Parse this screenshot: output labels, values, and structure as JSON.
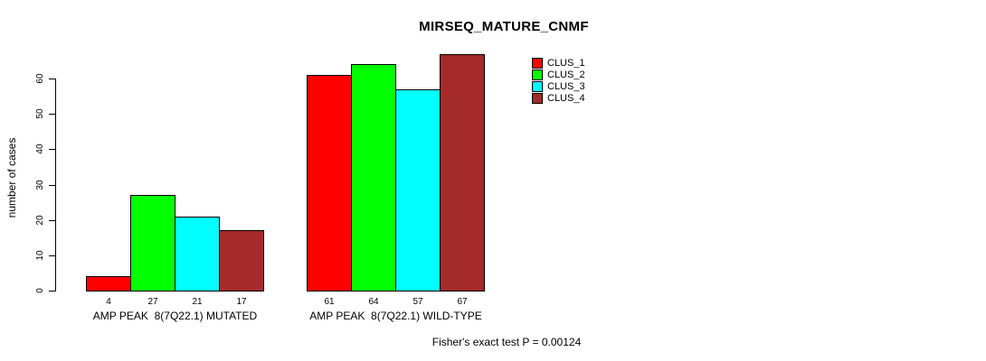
{
  "chart_data": {
    "type": "bar",
    "title": "MIRSEQ_MATURE_CNMF",
    "ylabel": "number of cases",
    "xlabel": "",
    "ylim": [
      0,
      60
    ],
    "yticks": [
      0,
      10,
      20,
      30,
      40,
      50,
      60
    ],
    "grid": false,
    "legend_position": "right-inside",
    "categories": [
      "AMP PEAK  8(7Q22.1) MUTATED",
      "AMP PEAK  8(7Q22.1) WILD-TYPE"
    ],
    "series": [
      {
        "name": "CLUS_1",
        "color": "#FF0000",
        "values": [
          4,
          61
        ]
      },
      {
        "name": "CLUS_2",
        "color": "#00FF00",
        "values": [
          27,
          64
        ]
      },
      {
        "name": "CLUS_3",
        "color": "#00FFFF",
        "values": [
          21,
          57
        ]
      },
      {
        "name": "CLUS_4",
        "color": "#A52A2A",
        "values": [
          17,
          67
        ]
      }
    ],
    "bar_value_labels": [
      [
        4,
        27,
        21,
        17
      ],
      [
        61,
        64,
        57,
        67
      ]
    ],
    "annotation": "Fisher's exact test P = 0.00124"
  }
}
